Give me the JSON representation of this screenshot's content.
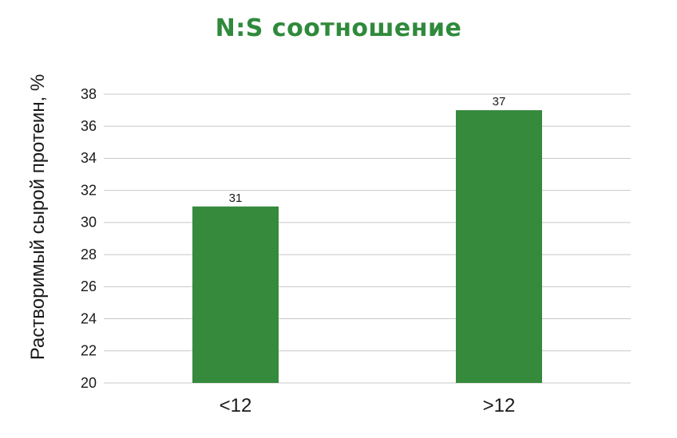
{
  "chart_data": {
    "type": "bar",
    "title": "N:S соотношение",
    "xlabel": "",
    "ylabel": "Растворимый сырой протеин, %",
    "categories": [
      "<12",
      ">12"
    ],
    "values": [
      31,
      37
    ],
    "data_labels": [
      "31",
      "37"
    ],
    "ylim": [
      20,
      38
    ],
    "yticks": [
      20,
      22,
      24,
      26,
      28,
      30,
      32,
      34,
      36,
      38
    ],
    "grid": true,
    "legend": "none",
    "bar_color": "#358a3c",
    "title_color": "#2f8a3b",
    "grid_color": "#c8c8c8"
  }
}
